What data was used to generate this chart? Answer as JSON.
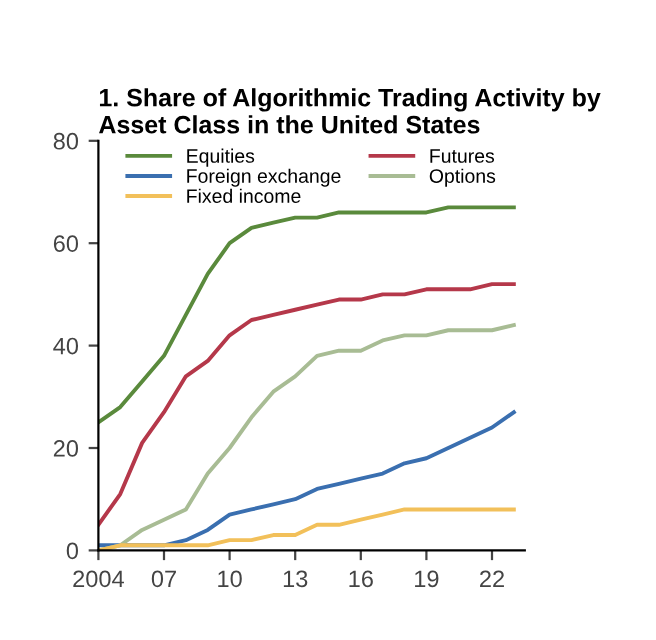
{
  "chart_data": {
    "type": "line",
    "title": "1. Share of Algorithmic Trading Activity by Asset Class in the United States",
    "x": [
      2004,
      2005,
      2006,
      2007,
      2008,
      2009,
      2010,
      2011,
      2012,
      2013,
      2014,
      2015,
      2016,
      2017,
      2018,
      2019,
      2020,
      2021,
      2022,
      2023
    ],
    "series": [
      {
        "name": "Equities",
        "color": "#5a8a3c",
        "values": [
          25,
          28,
          33,
          38,
          46,
          54,
          60,
          63,
          64,
          65,
          65,
          66,
          66,
          66,
          66,
          66,
          67,
          67,
          67,
          67
        ]
      },
      {
        "name": "Futures",
        "color": "#b5384a",
        "values": [
          5,
          11,
          21,
          27,
          34,
          37,
          42,
          45,
          46,
          47,
          48,
          49,
          49,
          50,
          50,
          51,
          51,
          51,
          52,
          52
        ]
      },
      {
        "name": "Foreign exchange",
        "color": "#3a6fb0",
        "values": [
          1,
          1,
          1,
          1,
          2,
          4,
          7,
          8,
          9,
          10,
          12,
          13,
          14,
          15,
          17,
          18,
          20,
          22,
          24,
          27
        ]
      },
      {
        "name": "Options",
        "color": "#a8bc94",
        "values": [
          0,
          1,
          4,
          6,
          8,
          15,
          20,
          26,
          31,
          34,
          38,
          39,
          39,
          41,
          42,
          42,
          43,
          43,
          43,
          44
        ]
      },
      {
        "name": "Fixed income",
        "color": "#f2c05a",
        "values": [
          0,
          1,
          1,
          1,
          1,
          1,
          2,
          2,
          3,
          3,
          5,
          5,
          6,
          7,
          8,
          8,
          8,
          8,
          8,
          8
        ]
      }
    ],
    "xlim": [
      2004,
      2023.5
    ],
    "xticks": [
      {
        "value": 2004,
        "label": "2004"
      },
      {
        "value": 2007,
        "label": "07"
      },
      {
        "value": 2010,
        "label": "10"
      },
      {
        "value": 2013,
        "label": "13"
      },
      {
        "value": 2016,
        "label": "16"
      },
      {
        "value": 2019,
        "label": "19"
      },
      {
        "value": 2022,
        "label": "22"
      }
    ],
    "ylim": [
      0,
      80
    ],
    "yticks": [
      0,
      20,
      40,
      60,
      80
    ],
    "grid": false,
    "legend": "top",
    "marker": "none",
    "line_style": "solid"
  }
}
